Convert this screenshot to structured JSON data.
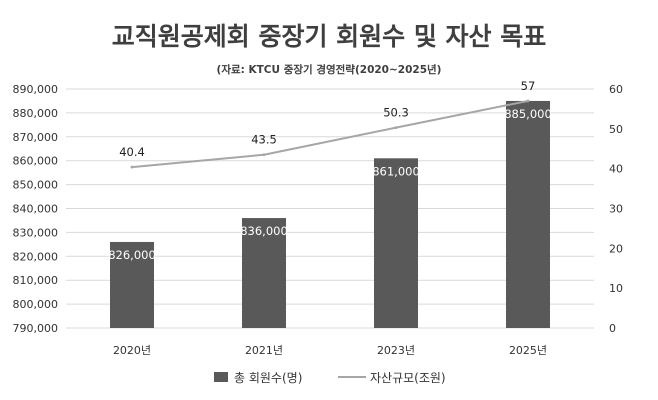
{
  "chart_data": {
    "type": "bar",
    "title": "교직원공제회 중장기 회원수 및 자산 목표",
    "subtitle": "(자료: KTCU 중장기 경영전략(2020~2025년)",
    "categories": [
      "2020년",
      "2021년",
      "2023년",
      "2025년"
    ],
    "series": [
      {
        "name": "총 회원수(명)",
        "type": "bar",
        "axis": "left",
        "color": "#595959",
        "values": [
          826000,
          836000,
          861000,
          885000
        ],
        "labels": [
          "826,000",
          "836,000",
          "861,000",
          "885,000"
        ]
      },
      {
        "name": "자산규모(조원)",
        "type": "line",
        "axis": "right",
        "color": "#a6a6a6",
        "values": [
          40.4,
          43.5,
          50.3,
          57
        ],
        "labels": [
          "40.4",
          "43.5",
          "50.3",
          "57"
        ]
      }
    ],
    "y_left": {
      "min": 790000,
      "max": 890000,
      "step": 10000,
      "ticks": [
        "790,000",
        "800,000",
        "810,000",
        "820,000",
        "830,000",
        "840,000",
        "850,000",
        "860,000",
        "870,000",
        "880,000",
        "890,000"
      ]
    },
    "y_right": {
      "min": 0,
      "max": 60,
      "step": 10,
      "ticks": [
        "0",
        "10",
        "20",
        "30",
        "40",
        "50",
        "60"
      ]
    },
    "grid": true,
    "legend_position": "bottom-center"
  }
}
